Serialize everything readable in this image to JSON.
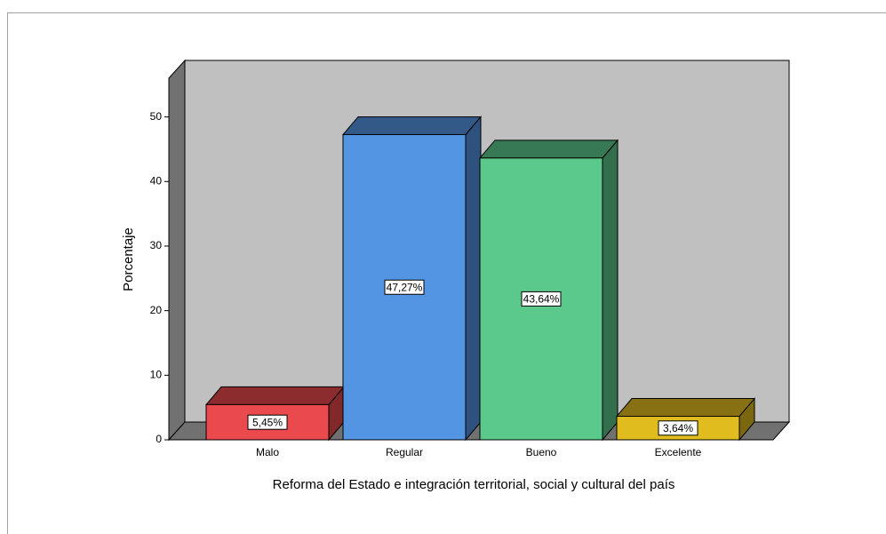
{
  "chart_data": {
    "type": "bar3d",
    "categories": [
      "Malo",
      "Regular",
      "Bueno",
      "Excelente"
    ],
    "values": [
      5.45,
      47.27,
      43.64,
      3.64
    ],
    "value_labels": [
      "5,45%",
      "47,27%",
      "43,64%",
      "3,64%"
    ],
    "colors": [
      "#ea4a4d",
      "#5495e3",
      "#5cc98c",
      "#e1bc1f"
    ],
    "xlabel": "Reforma del Estado e integración territorial, social y cultural del país",
    "ylabel": "Porcentaje",
    "ylim": [
      0,
      56
    ],
    "yticks": [
      0,
      10,
      20,
      30,
      40,
      50
    ]
  }
}
